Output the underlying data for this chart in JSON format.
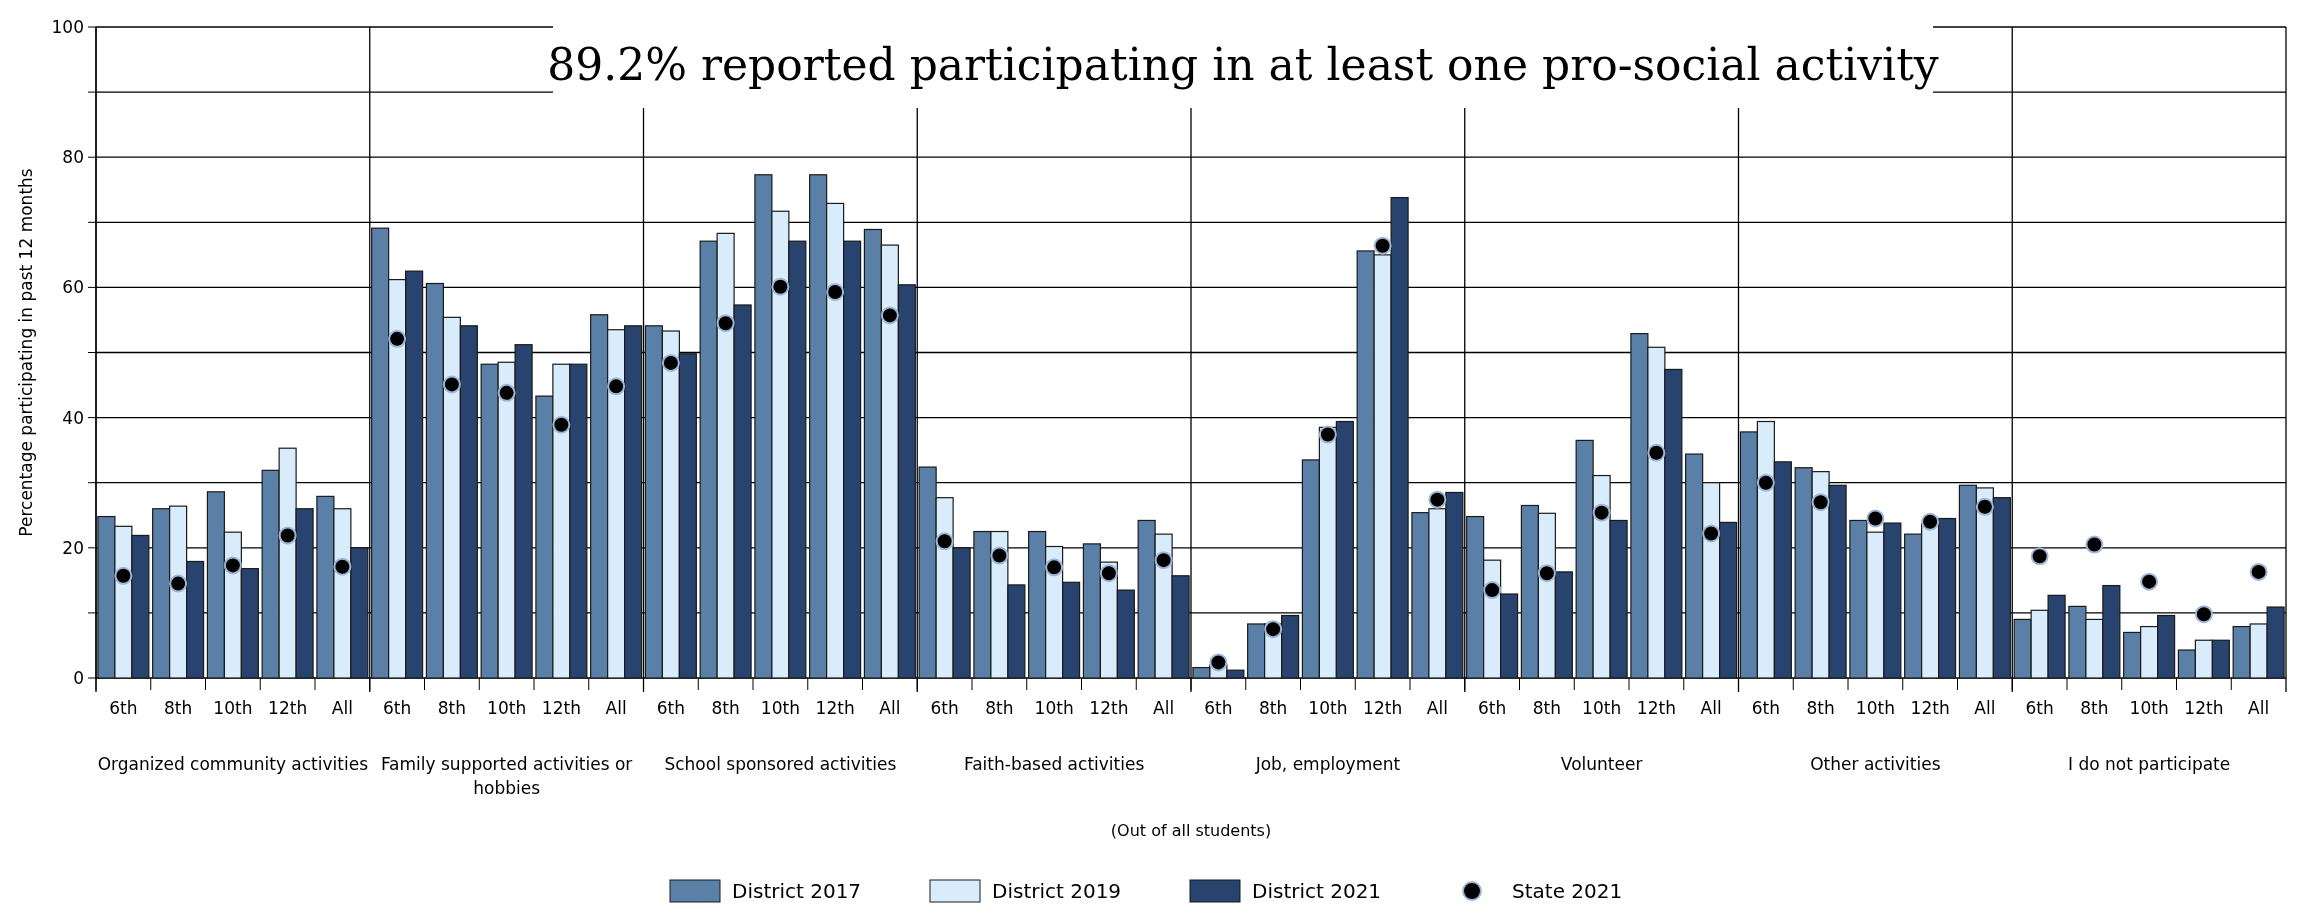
{
  "chart_data": {
    "type": "bar",
    "title": "89.2% reported participating in at least one pro-social activity",
    "ylabel": "Percentage participating in past 12 months",
    "categories": [
      "6th",
      "8th",
      "10th",
      "12th",
      "All",
      "6th",
      "8th",
      "10th",
      "12th",
      "All",
      "6th",
      "8th",
      "10th",
      "12th",
      "All",
      "6th",
      "8th",
      "10th",
      "12th",
      "All",
      "6th",
      "8th",
      "10th",
      "12th",
      "All",
      "6th",
      "8th",
      "10th",
      "12th",
      "All",
      "6th",
      "8th",
      "10th",
      "12th",
      "All",
      "6th",
      "8th",
      "10th",
      "12th",
      "All"
    ],
    "series": [
      {
        "name": "District 2017",
        "color": "#5b80a8",
        "values": [
          24.8,
          26.0,
          28.6,
          31.9,
          27.9,
          69.1,
          60.6,
          48.2,
          43.3,
          55.8,
          54.1,
          67.1,
          77.3,
          77.3,
          68.9,
          32.4,
          22.5,
          22.5,
          20.6,
          24.2,
          1.6,
          8.3,
          33.5,
          65.6,
          25.4,
          24.8,
          26.5,
          36.5,
          52.9,
          34.4,
          37.8,
          32.3,
          24.2,
          22.1,
          29.6,
          9.0,
          11.0,
          7.0,
          4.3,
          7.9
        ]
      },
      {
        "name": "District 2019",
        "color": "#d9ecfb",
        "values": [
          23.3,
          26.4,
          22.4,
          35.3,
          26.0,
          61.2,
          55.4,
          48.5,
          48.2,
          53.5,
          53.3,
          68.3,
          71.7,
          72.9,
          66.5,
          27.7,
          22.5,
          20.2,
          17.8,
          22.1,
          2.0,
          8.3,
          38.5,
          65.0,
          26.0,
          18.1,
          25.3,
          31.1,
          50.8,
          30.0,
          39.4,
          31.7,
          22.4,
          23.7,
          29.2,
          10.4,
          9.0,
          7.9,
          5.8,
          8.3
        ]
      },
      {
        "name": "District 2021",
        "color": "#27436e",
        "values": [
          21.9,
          17.9,
          16.8,
          26.0,
          20.0,
          62.5,
          54.1,
          51.2,
          48.2,
          54.1,
          49.8,
          57.3,
          67.1,
          67.1,
          60.4,
          20.0,
          14.3,
          14.7,
          13.5,
          15.7,
          1.2,
          9.6,
          39.4,
          73.8,
          28.5,
          12.9,
          16.3,
          24.2,
          47.4,
          23.9,
          33.2,
          29.6,
          23.8,
          24.5,
          27.7,
          12.7,
          14.2,
          9.6,
          5.8,
          10.9
        ]
      },
      {
        "name": "State 2021",
        "type": "scatter",
        "color": "#000000",
        "values": [
          15.7,
          14.5,
          17.3,
          21.9,
          17.1,
          52.1,
          45.1,
          43.8,
          38.9,
          44.8,
          48.4,
          54.5,
          60.1,
          59.3,
          55.7,
          21.0,
          18.8,
          17.0,
          16.1,
          18.1,
          2.4,
          7.5,
          37.4,
          66.4,
          27.4,
          13.5,
          16.1,
          25.4,
          34.6,
          22.2,
          30.0,
          27.0,
          24.5,
          24.0,
          26.3,
          18.7,
          20.5,
          14.8,
          9.8,
          16.3
        ]
      }
    ],
    "annotations": [
      "Organized community activities",
      "Family supported activities or hobbies",
      "School sponsored activities",
      "Faith-based activities",
      "Job, employment",
      "Volunteer",
      "Other activities",
      "I do not participate",
      "(Out of all students)"
    ],
    "ylim": [
      0,
      100
    ],
    "yticks": [
      0,
      {
        "value": 10,
        "label": null
      },
      20,
      {
        "value": 30,
        "label": null
      },
      40,
      {
        "value": 50,
        "label": null
      },
      60,
      {
        "value": 70,
        "label": null
      },
      80,
      {
        "value": 90,
        "label": null
      },
      100
    ],
    "grid": "y",
    "legend": "bottom",
    "marker": "circle"
  }
}
